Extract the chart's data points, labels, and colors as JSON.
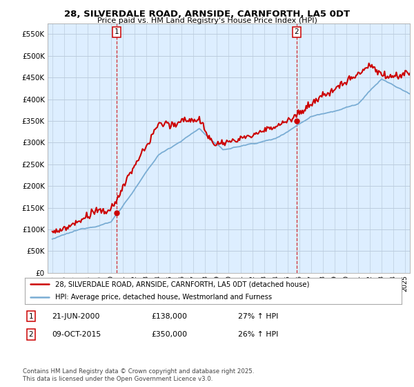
{
  "title_line1": "28, SILVERDALE ROAD, ARNSIDE, CARNFORTH, LA5 0DT",
  "title_line2": "Price paid vs. HM Land Registry's House Price Index (HPI)",
  "legend_line1": "28, SILVERDALE ROAD, ARNSIDE, CARNFORTH, LA5 0DT (detached house)",
  "legend_line2": "HPI: Average price, detached house, Westmorland and Furness",
  "marker1_date": "21-JUN-2000",
  "marker1_price": "£138,000",
  "marker1_hpi": "27% ↑ HPI",
  "marker2_date": "09-OCT-2015",
  "marker2_price": "£350,000",
  "marker2_hpi": "26% ↑ HPI",
  "footer": "Contains HM Land Registry data © Crown copyright and database right 2025.\nThis data is licensed under the Open Government Licence v3.0.",
  "price_color": "#cc0000",
  "hpi_color": "#7aadd4",
  "vline_color": "#cc0000",
  "bg_plot_color": "#ddeeff",
  "ylim": [
    0,
    575000
  ],
  "yticks": [
    0,
    50000,
    100000,
    150000,
    200000,
    250000,
    300000,
    350000,
    400000,
    450000,
    500000,
    550000
  ],
  "xlim_start": 1994.6,
  "xlim_end": 2025.4,
  "sale1_year": 2000.47,
  "sale1_price": 138000,
  "sale2_year": 2015.77,
  "sale2_price": 350000,
  "background_color": "#ffffff",
  "grid_color": "#bbccdd"
}
